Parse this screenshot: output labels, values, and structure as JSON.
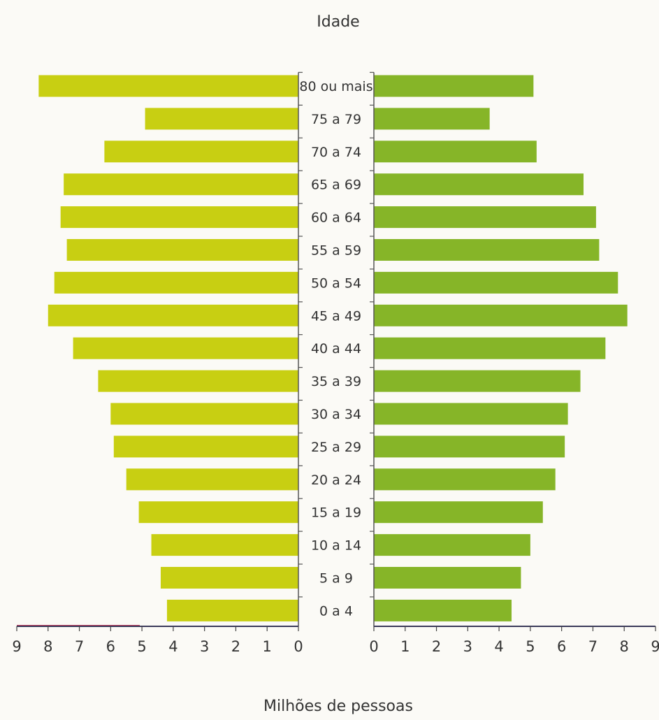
{
  "chart_data": {
    "type": "bar",
    "title": "Idade",
    "xlabel": "Milhões de pessoas",
    "categories": [
      "80 ou mais",
      "75 a 79",
      "70 a 74",
      "65 a 69",
      "60 a 64",
      "55 a 59",
      "50 a 54",
      "45 a 49",
      "40 a 44",
      "35 a 39",
      "30 a 34",
      "25 a 29",
      "20 a 24",
      "15 a 19",
      "10 a 14",
      "5 a 9",
      "0 a 4"
    ],
    "series": [
      {
        "side": "left",
        "color": "#c8cf12",
        "values": [
          8.3,
          4.9,
          6.2,
          7.5,
          7.6,
          7.4,
          7.8,
          8.0,
          7.2,
          6.4,
          6.0,
          5.9,
          5.5,
          5.1,
          4.7,
          4.4,
          4.2
        ]
      },
      {
        "side": "right",
        "color": "#86b528",
        "values": [
          5.1,
          3.7,
          5.2,
          6.7,
          7.1,
          7.2,
          7.8,
          8.1,
          7.4,
          6.6,
          6.2,
          6.1,
          5.8,
          5.4,
          5.0,
          4.7,
          4.4
        ]
      }
    ],
    "xlim": [
      0,
      9
    ],
    "ticks": [
      "9",
      "8",
      "7",
      "6",
      "5",
      "4",
      "3",
      "2",
      "1",
      "0"
    ],
    "ticks_right": [
      "0",
      "1",
      "2",
      "3",
      "4",
      "5",
      "6",
      "7",
      "8",
      "9"
    ],
    "grid": false,
    "legend": "none"
  }
}
